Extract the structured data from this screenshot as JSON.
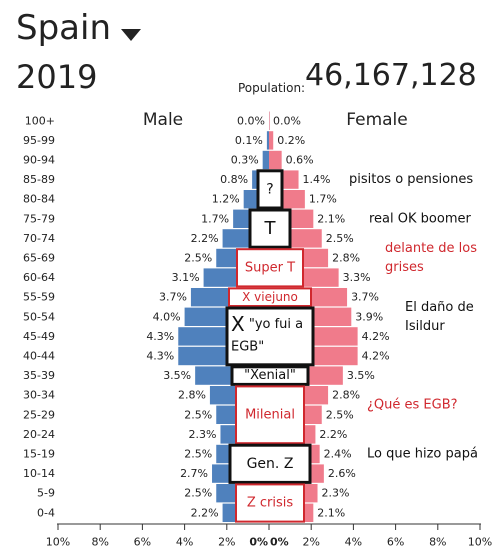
{
  "header": {
    "country": "Spain",
    "year": "2019",
    "population_label": "Population:",
    "population_value": "46,167,128"
  },
  "colors": {
    "male": "#4f81bd",
    "female": "#f07b8b",
    "box_black": "#111111",
    "box_red": "#d0282e",
    "note_red": "#d0282e"
  },
  "chart_data": {
    "type": "bar",
    "legend": {
      "male": "Male",
      "female": "Female"
    },
    "categories": [
      "100+",
      "95-99",
      "90-94",
      "85-89",
      "80-84",
      "75-79",
      "70-74",
      "65-69",
      "60-64",
      "55-59",
      "50-54",
      "45-49",
      "40-44",
      "35-39",
      "30-34",
      "25-29",
      "20-24",
      "15-19",
      "10-14",
      "5-9",
      "0-4"
    ],
    "series": [
      {
        "name": "Male",
        "values": [
          0.0,
          0.1,
          0.3,
          0.8,
          1.2,
          1.7,
          2.2,
          2.5,
          3.1,
          3.7,
          4.0,
          4.3,
          4.3,
          3.5,
          2.8,
          2.5,
          2.3,
          2.5,
          2.7,
          2.5,
          2.2
        ]
      },
      {
        "name": "Female",
        "values": [
          0.0,
          0.2,
          0.6,
          1.4,
          1.7,
          2.1,
          2.5,
          2.8,
          3.3,
          3.7,
          3.9,
          4.2,
          4.2,
          3.5,
          2.8,
          2.5,
          2.2,
          2.4,
          2.6,
          2.3,
          2.1
        ]
      }
    ],
    "value_labels": {
      "male": [
        "0.0%",
        "0.1%",
        "0.3%",
        "0.8%",
        "1.2%",
        "1.7%",
        "2.2%",
        "2.5%",
        "3.1%",
        "3.7%",
        "4.0%",
        "4.3%",
        "4.3%",
        "3.5%",
        "2.8%",
        "2.5%",
        "2.3%",
        "2.5%",
        "2.7%",
        "2.5%",
        "2.2%"
      ],
      "female": [
        "0.0%",
        "0.2%",
        "0.6%",
        "1.4%",
        "1.7%",
        "2.1%",
        "2.5%",
        "2.8%",
        "3.3%",
        "3.7%",
        "3.9%",
        "4.2%",
        "4.2%",
        "3.5%",
        "2.8%",
        "2.5%",
        "2.2%",
        "2.4%",
        "2.6%",
        "2.3%",
        "2.1%"
      ]
    },
    "x_ticks": {
      "left": [
        "10%",
        "8%",
        "6%",
        "4%",
        "2%",
        "0%"
      ],
      "right": [
        "0%",
        "2%",
        "4%",
        "6%",
        "8%",
        "10%"
      ]
    },
    "xlim": [
      -10,
      10
    ]
  },
  "annotations": {
    "boxes": [
      {
        "text": "?",
        "color": "black",
        "rows": [
          3,
          4
        ]
      },
      {
        "text": "T",
        "color": "black",
        "rows": [
          5,
          6
        ]
      },
      {
        "text": "Super T",
        "color": "red",
        "rows": [
          7,
          8
        ]
      },
      {
        "text": "X viejuno",
        "color": "red",
        "rows": [
          9,
          9
        ]
      },
      {
        "text": "X \"yo fui a EGB\"",
        "color": "black",
        "rows": [
          10,
          12
        ]
      },
      {
        "text": "\"Xenial\"",
        "color": "black",
        "rows": [
          13,
          13
        ]
      },
      {
        "text": "Milenial",
        "color": "red",
        "rows": [
          14,
          16
        ]
      },
      {
        "text": "Gen. Z",
        "color": "black",
        "rows": [
          17,
          18
        ]
      },
      {
        "text": "Z crisis",
        "color": "red",
        "rows": [
          19,
          20
        ]
      }
    ],
    "notes": [
      {
        "text": "pisitos o pensiones",
        "color": "black",
        "row": 3.5
      },
      {
        "text": "real OK boomer",
        "color": "black",
        "row": 5.5
      },
      {
        "text": "delante de los grises",
        "color": "red",
        "row": 7.5
      },
      {
        "text": "El daño de Isildur",
        "color": "black",
        "row": 10.5
      },
      {
        "text": "¿Qué es EGB?",
        "color": "red",
        "row": 15
      },
      {
        "text": "Lo que hizo papá",
        "color": "black",
        "row": 17.5
      }
    ]
  }
}
